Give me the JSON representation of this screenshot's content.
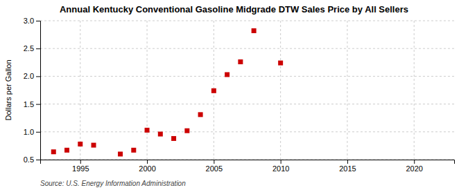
{
  "chart_data": {
    "type": "scatter",
    "title": "Annual Kentucky Conventional Gasoline Midgrade DTW Sales Price by All Sellers",
    "ylabel": "Dollars per Gallon",
    "source": "Source: U.S. Energy Information Administration",
    "x": [
      1993,
      1994,
      1995,
      1996,
      1998,
      1999,
      2000,
      2001,
      2002,
      2003,
      2004,
      2005,
      2006,
      2007,
      2008,
      2010
    ],
    "values": [
      0.64,
      0.67,
      0.78,
      0.76,
      0.6,
      0.67,
      1.03,
      0.96,
      0.88,
      1.02,
      1.31,
      1.74,
      2.03,
      2.26,
      2.82,
      2.24
    ],
    "color": "#cc0000",
    "marker": "square",
    "xlim": [
      1992,
      2023
    ],
    "ylim": [
      0.5,
      3.0
    ],
    "xticks": [
      1995,
      2000,
      2005,
      2010,
      2015,
      2020
    ],
    "yticks": [
      0.5,
      {
        "value": 1.0,
        "label": "1.0"
      },
      1.5,
      {
        "value": 2.0,
        "label": "2.0"
      },
      2.5,
      {
        "value": 3.0,
        "label": "3.0"
      }
    ],
    "grid": true
  }
}
